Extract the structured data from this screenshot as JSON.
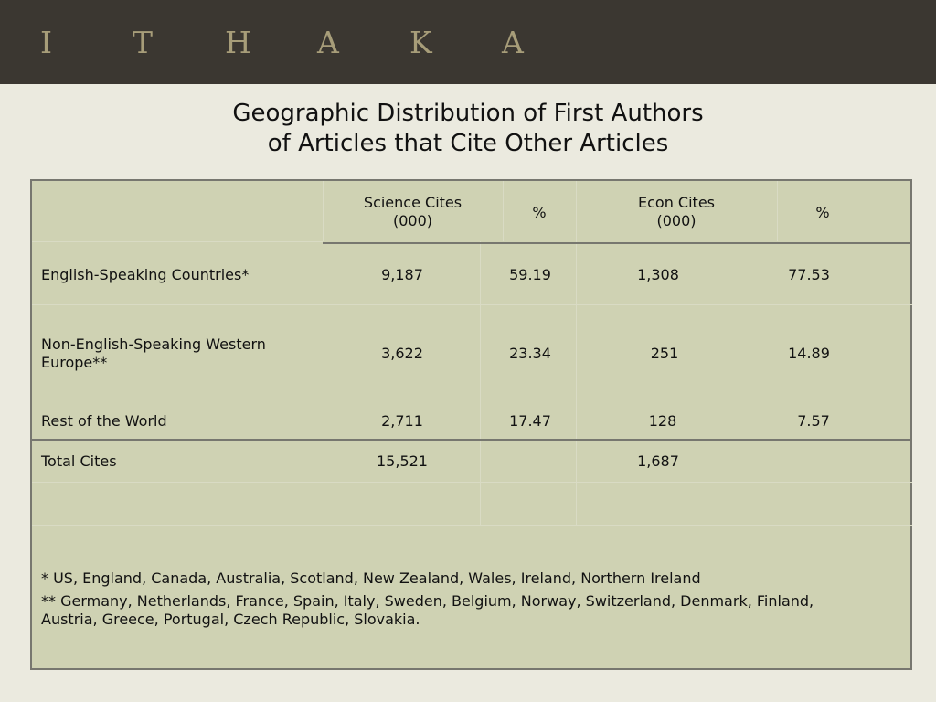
{
  "brand": {
    "letters": [
      "I",
      "T",
      "H",
      "A",
      "K",
      "A"
    ]
  },
  "slide": {
    "title_line1": "Geographic Distribution of First Authors",
    "title_line2": "of Articles that Cite Other Articles"
  },
  "table": {
    "headers": {
      "science_cites": [
        "Science Cites",
        "(000)"
      ],
      "science_pct": "%",
      "econ_cites": [
        "Econ Cites",
        "(000)"
      ],
      "econ_pct": "%"
    },
    "rows": [
      {
        "label": "English-Speaking Countries*",
        "science": "9,187",
        "science_pct": "59.19",
        "econ": "1,308",
        "econ_pct": "77.53"
      },
      {
        "label": [
          "Non-English-Speaking Western",
          "Europe**"
        ],
        "science": "3,622",
        "science_pct": "23.34",
        "econ": "251",
        "econ_pct": "14.89"
      },
      {
        "label": "Rest of the World",
        "science": "2,711",
        "science_pct": "17.47",
        "econ": "128",
        "econ_pct": "7.57"
      }
    ],
    "total": {
      "label": "Total Cites",
      "science": "15,521",
      "econ": "1,687"
    },
    "footnotes": {
      "note1": "* US, England, Canada, Australia, Scotland, New Zealand, Wales, Ireland, Northern Ireland",
      "note2_line1": "** Germany, Netherlands, France, Spain, Italy, Sweden, Belgium, Norway, Switzerland, Denmark, Finland,",
      "note2_line2": "Austria, Greece, Portugal, Czech Republic, Slovakia."
    }
  },
  "colors": {
    "header_bar": "#3b3731",
    "logo": "#a79d79",
    "background": "#ebeadf",
    "table_fill": "#cfd2b3",
    "table_border": "#77776f"
  }
}
